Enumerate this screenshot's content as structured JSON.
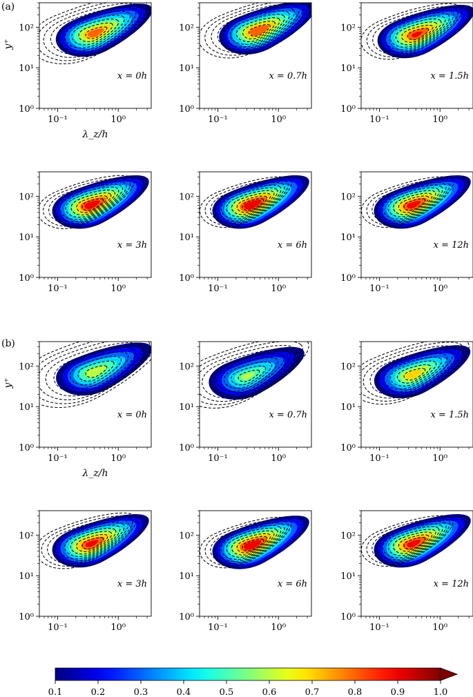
{
  "figure": {
    "panel_labels": [
      "(a)",
      "(b)"
    ],
    "ylabel": "y⁺",
    "xlabel": "λ_z/h"
  },
  "chart_data": {
    "type": "heatmap",
    "x_axis": {
      "label": "λ_z/h",
      "scale": "log",
      "range": [
        0.05,
        3.5
      ],
      "ticks": [
        "10⁻¹",
        "10⁰"
      ],
      "tick_values": [
        0.1,
        1
      ]
    },
    "y_axis": {
      "label": "y⁺",
      "scale": "log",
      "range": [
        1,
        400
      ],
      "ticks": [
        "10⁰",
        "10¹",
        "10²"
      ],
      "tick_values": [
        1,
        10,
        100
      ]
    },
    "grid": false,
    "colorbar": {
      "orientation": "horizontal",
      "position": "bottom",
      "range": [
        0.1,
        1.0
      ],
      "ticks": [
        "0.1",
        "0.2",
        "0.3",
        "0.4",
        "0.5",
        "0.6",
        "0.7",
        "0.8",
        "0.9",
        "1.0"
      ],
      "extend": "max",
      "colormap": "jet"
    },
    "groups": [
      {
        "label": "(a)",
        "panels": [
          {
            "annotation": "x = 0h",
            "peak": [
              0.4,
              70
            ],
            "peak_value": 0.85,
            "dashed_extent": 1.35
          },
          {
            "annotation": "x = 0.7h",
            "peak": [
              0.45,
              80
            ],
            "peak_value": 0.88,
            "dashed_extent": 1.2
          },
          {
            "annotation": "x = 1.5h",
            "peak": [
              0.4,
              65
            ],
            "peak_value": 0.9,
            "dashed_extent": 1.1
          },
          {
            "annotation": "x = 3h",
            "peak": [
              0.35,
              60
            ],
            "peak_value": 0.95,
            "dashed_extent": 1.05
          },
          {
            "annotation": "x = 6h",
            "peak": [
              0.35,
              60
            ],
            "peak_value": 0.97,
            "dashed_extent": 1.0
          },
          {
            "annotation": "x = 12h",
            "peak": [
              0.35,
              60
            ],
            "peak_value": 0.93,
            "dashed_extent": 1.0
          }
        ]
      },
      {
        "label": "(b)",
        "panels": [
          {
            "annotation": "x = 0h",
            "peak": [
              0.4,
              70
            ],
            "peak_value": 0.68,
            "dashed_extent": 1.55
          },
          {
            "annotation": "x = 0.7h",
            "peak": [
              0.3,
              55
            ],
            "peak_value": 0.62,
            "dashed_extent": 1.4
          },
          {
            "annotation": "x = 1.5h",
            "peak": [
              0.35,
              60
            ],
            "peak_value": 0.75,
            "dashed_extent": 1.3
          },
          {
            "annotation": "x = 3h",
            "peak": [
              0.35,
              60
            ],
            "peak_value": 0.92,
            "dashed_extent": 1.1
          },
          {
            "annotation": "x = 6h",
            "peak": [
              0.35,
              55
            ],
            "peak_value": 0.97,
            "dashed_extent": 1.0
          },
          {
            "annotation": "x = 12h",
            "peak": [
              0.35,
              60
            ],
            "peak_value": 0.93,
            "dashed_extent": 1.0
          }
        ]
      }
    ]
  }
}
